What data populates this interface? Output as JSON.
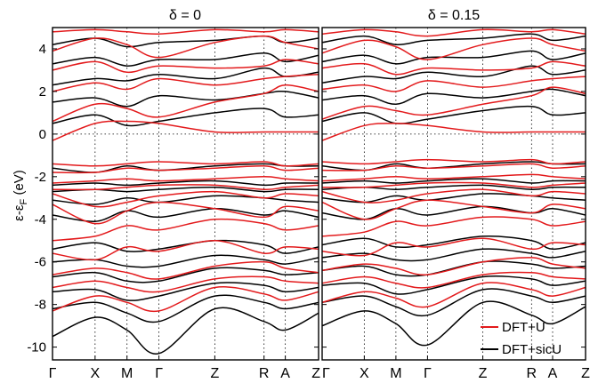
{
  "chart_data": {
    "type": "line",
    "ylabel_main": "ε-ε",
    "ylabel_sub": "F",
    "ylabel_unit": " (eV)",
    "ylim": [
      -10.6,
      5.0
    ],
    "yticks": [
      4,
      2,
      0,
      -2,
      -4,
      -6,
      -8,
      -10
    ],
    "ytick_labels": [
      "4",
      "2",
      "0",
      "-2",
      "-4",
      "-6",
      "-8",
      "-10"
    ],
    "kpath": [
      "Γ",
      "X",
      "M",
      "Γ",
      "Z",
      "R",
      "A",
      "Z"
    ],
    "kpos": [
      0,
      0.16,
      0.28,
      0.4,
      0.61,
      0.795,
      0.875,
      1.0
    ],
    "grid": "dotted vertical at high-symmetry points, dotted horizontal at 0",
    "legend_position": "bottom-right",
    "legend": [
      {
        "label": "DFT+U",
        "color": "#e31a1c"
      },
      {
        "label": "DFT+sicU",
        "color": "#000000"
      }
    ],
    "panels": [
      {
        "title": "δ = 0",
        "series": [
          {
            "key": "dftu",
            "color": "#e31a1c",
            "bands": [
              [
                -8.3,
                -7.6,
                -7.9,
                -8.3,
                -7.2,
                -7.5,
                -7.8,
                -7.4
              ],
              [
                -7.2,
                -6.9,
                -7.2,
                -7.4,
                -6.8,
                -6.7,
                -6.9,
                -7.0
              ],
              [
                -6.6,
                -6.3,
                -6.5,
                -6.8,
                -6.2,
                -6.0,
                -6.3,
                -6.5
              ],
              [
                -5.6,
                -5.9,
                -5.3,
                -5.5,
                -5.0,
                -5.6,
                -5.3,
                -5.4
              ],
              [
                -5.0,
                -4.8,
                -4.3,
                -4.5,
                -4.0,
                -4.2,
                -4.5,
                -4.3
              ],
              [
                -3.3,
                -4.2,
                -3.6,
                -3.2,
                -3.5,
                -3.9,
                -3.4,
                -3.6
              ],
              [
                -2.8,
                -3.4,
                -3.2,
                -2.9,
                -2.7,
                -3.0,
                -2.8,
                -2.9
              ],
              [
                -2.6,
                -2.6,
                -2.5,
                -2.4,
                -2.4,
                -2.6,
                -2.5,
                -2.4
              ],
              [
                -2.3,
                -2.2,
                -2.1,
                -2.2,
                -2.1,
                -2.0,
                -2.1,
                -2.2
              ],
              [
                -1.8,
                -1.8,
                -1.6,
                -1.7,
                -1.6,
                -1.5,
                -1.7,
                -1.6
              ],
              [
                -1.4,
                -1.5,
                -1.4,
                -1.3,
                -1.4,
                -1.3,
                -1.5,
                -1.4
              ],
              [
                -0.3,
                0.5,
                0.6,
                0.5,
                0.1,
                0.1,
                0.1,
                0.1
              ],
              [
                0.6,
                1.4,
                1.2,
                0.8,
                1.5,
                1.9,
                2.3,
                2.0
              ],
              [
                2.0,
                2.4,
                2.1,
                2.6,
                2.3,
                2.6,
                2.7,
                2.8
              ],
              [
                3.0,
                3.4,
                2.9,
                3.2,
                3.1,
                3.2,
                3.5,
                3.3
              ],
              [
                3.9,
                4.5,
                4.2,
                3.6,
                4.3,
                4.6,
                4.3,
                4.0
              ],
              [
                4.8,
                4.9,
                4.8,
                4.7,
                4.9,
                4.8,
                4.9,
                4.8
              ]
            ]
          },
          {
            "key": "dftsicu",
            "color": "#000000",
            "bands": [
              [
                -9.5,
                -8.6,
                -9.2,
                -10.3,
                -8.2,
                -8.8,
                -9.2,
                -8.4
              ],
              [
                -8.2,
                -7.9,
                -8.4,
                -8.8,
                -7.6,
                -7.9,
                -8.2,
                -7.9
              ],
              [
                -7.4,
                -7.3,
                -7.8,
                -7.6,
                -7.0,
                -7.1,
                -7.4,
                -7.2
              ],
              [
                -6.7,
                -6.5,
                -6.9,
                -6.9,
                -6.3,
                -6.4,
                -6.6,
                -6.5
              ],
              [
                -6.0,
                -5.9,
                -6.2,
                -6.2,
                -5.7,
                -5.9,
                -6.1,
                -5.8
              ],
              [
                -5.4,
                -5.1,
                -5.5,
                -5.4,
                -5.0,
                -5.2,
                -5.6,
                -5.3
              ],
              [
                -3.8,
                -4.1,
                -3.6,
                -3.9,
                -3.5,
                -3.8,
                -3.6,
                -3.9
              ],
              [
                -3.1,
                -3.3,
                -3.0,
                -3.2,
                -2.9,
                -3.0,
                -3.1,
                -3.2
              ],
              [
                -2.7,
                -2.6,
                -2.7,
                -2.6,
                -2.5,
                -2.7,
                -2.6,
                -2.6
              ],
              [
                -2.4,
                -2.3,
                -2.4,
                -2.3,
                -2.2,
                -2.4,
                -2.3,
                -2.3
              ],
              [
                -1.6,
                -1.8,
                -1.5,
                -1.7,
                -1.5,
                -1.4,
                -1.5,
                -1.5
              ],
              [
                0.5,
                0.9,
                0.4,
                0.6,
                1.0,
                1.2,
                0.8,
                0.9
              ],
              [
                1.5,
                1.7,
                1.3,
                1.8,
                1.6,
                1.9,
                2.0,
                1.7
              ],
              [
                2.3,
                2.6,
                2.5,
                2.8,
                2.6,
                3.1,
                2.7,
                2.9
              ],
              [
                3.3,
                3.6,
                3.2,
                3.5,
                3.5,
                3.8,
                3.4,
                3.7
              ],
              [
                4.2,
                4.5,
                4.1,
                4.3,
                4.4,
                4.6,
                4.3,
                4.5
              ]
            ]
          }
        ]
      },
      {
        "title": "δ = 0.15",
        "series": [
          {
            "key": "dftu",
            "color": "#e31a1c",
            "bands": [
              [
                -7.9,
                -7.4,
                -7.7,
                -8.1,
                -7.0,
                -7.3,
                -7.6,
                -7.2
              ],
              [
                -7.0,
                -6.7,
                -7.0,
                -7.2,
                -6.6,
                -6.5,
                -6.7,
                -6.8
              ],
              [
                -6.4,
                -6.1,
                -6.3,
                -6.6,
                -6.0,
                -5.8,
                -6.1,
                -6.3
              ],
              [
                -5.5,
                -5.7,
                -5.1,
                -5.3,
                -4.9,
                -5.4,
                -5.1,
                -5.2
              ],
              [
                -4.8,
                -4.6,
                -4.1,
                -4.3,
                -3.9,
                -4.0,
                -4.3,
                -4.1
              ],
              [
                -3.2,
                -4.0,
                -3.5,
                -3.1,
                -3.4,
                -3.7,
                -3.3,
                -3.5
              ],
              [
                -2.7,
                -3.2,
                -3.1,
                -2.8,
                -2.6,
                -2.9,
                -2.7,
                -2.8
              ],
              [
                -2.5,
                -2.5,
                -2.4,
                -2.3,
                -2.3,
                -2.5,
                -2.4,
                -2.3
              ],
              [
                -2.2,
                -2.1,
                -2.0,
                -2.1,
                -2.0,
                -1.9,
                -2.0,
                -2.1
              ],
              [
                -1.7,
                -1.7,
                -1.5,
                -1.6,
                -1.5,
                -1.4,
                -1.6,
                -1.5
              ],
              [
                -1.3,
                -1.4,
                -1.3,
                -1.2,
                -1.3,
                -1.2,
                -1.4,
                -1.3
              ],
              [
                -0.3,
                0.4,
                0.5,
                0.4,
                0.1,
                0.1,
                0.1,
                0.1
              ],
              [
                0.7,
                1.3,
                1.1,
                0.9,
                1.4,
                1.8,
                2.2,
                1.9
              ],
              [
                2.1,
                2.3,
                2.0,
                2.5,
                2.2,
                2.5,
                2.6,
                2.7
              ],
              [
                3.1,
                3.3,
                2.8,
                3.1,
                3.0,
                3.1,
                3.4,
                3.2
              ],
              [
                3.8,
                4.4,
                4.1,
                3.5,
                4.2,
                4.5,
                4.2,
                3.9
              ],
              [
                4.7,
                4.9,
                4.8,
                4.6,
                4.9,
                4.8,
                4.9,
                4.7
              ]
            ]
          },
          {
            "key": "dftsicu",
            "color": "#000000",
            "bands": [
              [
                -9.0,
                -8.3,
                -8.9,
                -9.9,
                -7.9,
                -8.5,
                -8.9,
                -8.1
              ],
              [
                -7.9,
                -7.6,
                -8.1,
                -8.5,
                -7.3,
                -7.6,
                -7.9,
                -7.6
              ],
              [
                -7.1,
                -7.0,
                -7.5,
                -7.3,
                -6.7,
                -6.8,
                -7.1,
                -6.9
              ],
              [
                -6.4,
                -6.2,
                -6.6,
                -6.6,
                -6.0,
                -6.1,
                -6.3,
                -6.2
              ],
              [
                -5.8,
                -5.6,
                -5.9,
                -5.9,
                -5.4,
                -5.6,
                -5.8,
                -5.5
              ],
              [
                -5.2,
                -4.9,
                -5.3,
                -5.2,
                -4.8,
                -5.0,
                -5.4,
                -5.1
              ],
              [
                -3.7,
                -4.0,
                -3.5,
                -3.8,
                -3.4,
                -3.7,
                -3.5,
                -3.8
              ],
              [
                -3.0,
                -3.2,
                -2.9,
                -3.1,
                -2.8,
                -2.9,
                -3.0,
                -3.1
              ],
              [
                -2.6,
                -2.5,
                -2.6,
                -2.5,
                -2.4,
                -2.6,
                -2.5,
                -2.5
              ],
              [
                -2.3,
                -2.2,
                -2.3,
                -2.2,
                -2.1,
                -2.3,
                -2.2,
                -2.2
              ],
              [
                -1.5,
                -1.7,
                -1.4,
                -1.6,
                -1.4,
                -1.3,
                -1.4,
                -1.4
              ],
              [
                0.6,
                1.0,
                0.5,
                0.7,
                1.1,
                1.3,
                0.9,
                1.0
              ],
              [
                1.6,
                1.8,
                1.4,
                1.9,
                1.7,
                2.0,
                2.1,
                1.8
              ],
              [
                2.4,
                2.7,
                2.6,
                2.9,
                2.7,
                3.2,
                2.8,
                3.0
              ],
              [
                3.4,
                3.7,
                3.3,
                3.6,
                3.6,
                3.9,
                3.5,
                3.8
              ],
              [
                4.3,
                4.6,
                4.2,
                4.4,
                4.5,
                4.7,
                4.4,
                4.6
              ]
            ]
          }
        ]
      }
    ]
  }
}
